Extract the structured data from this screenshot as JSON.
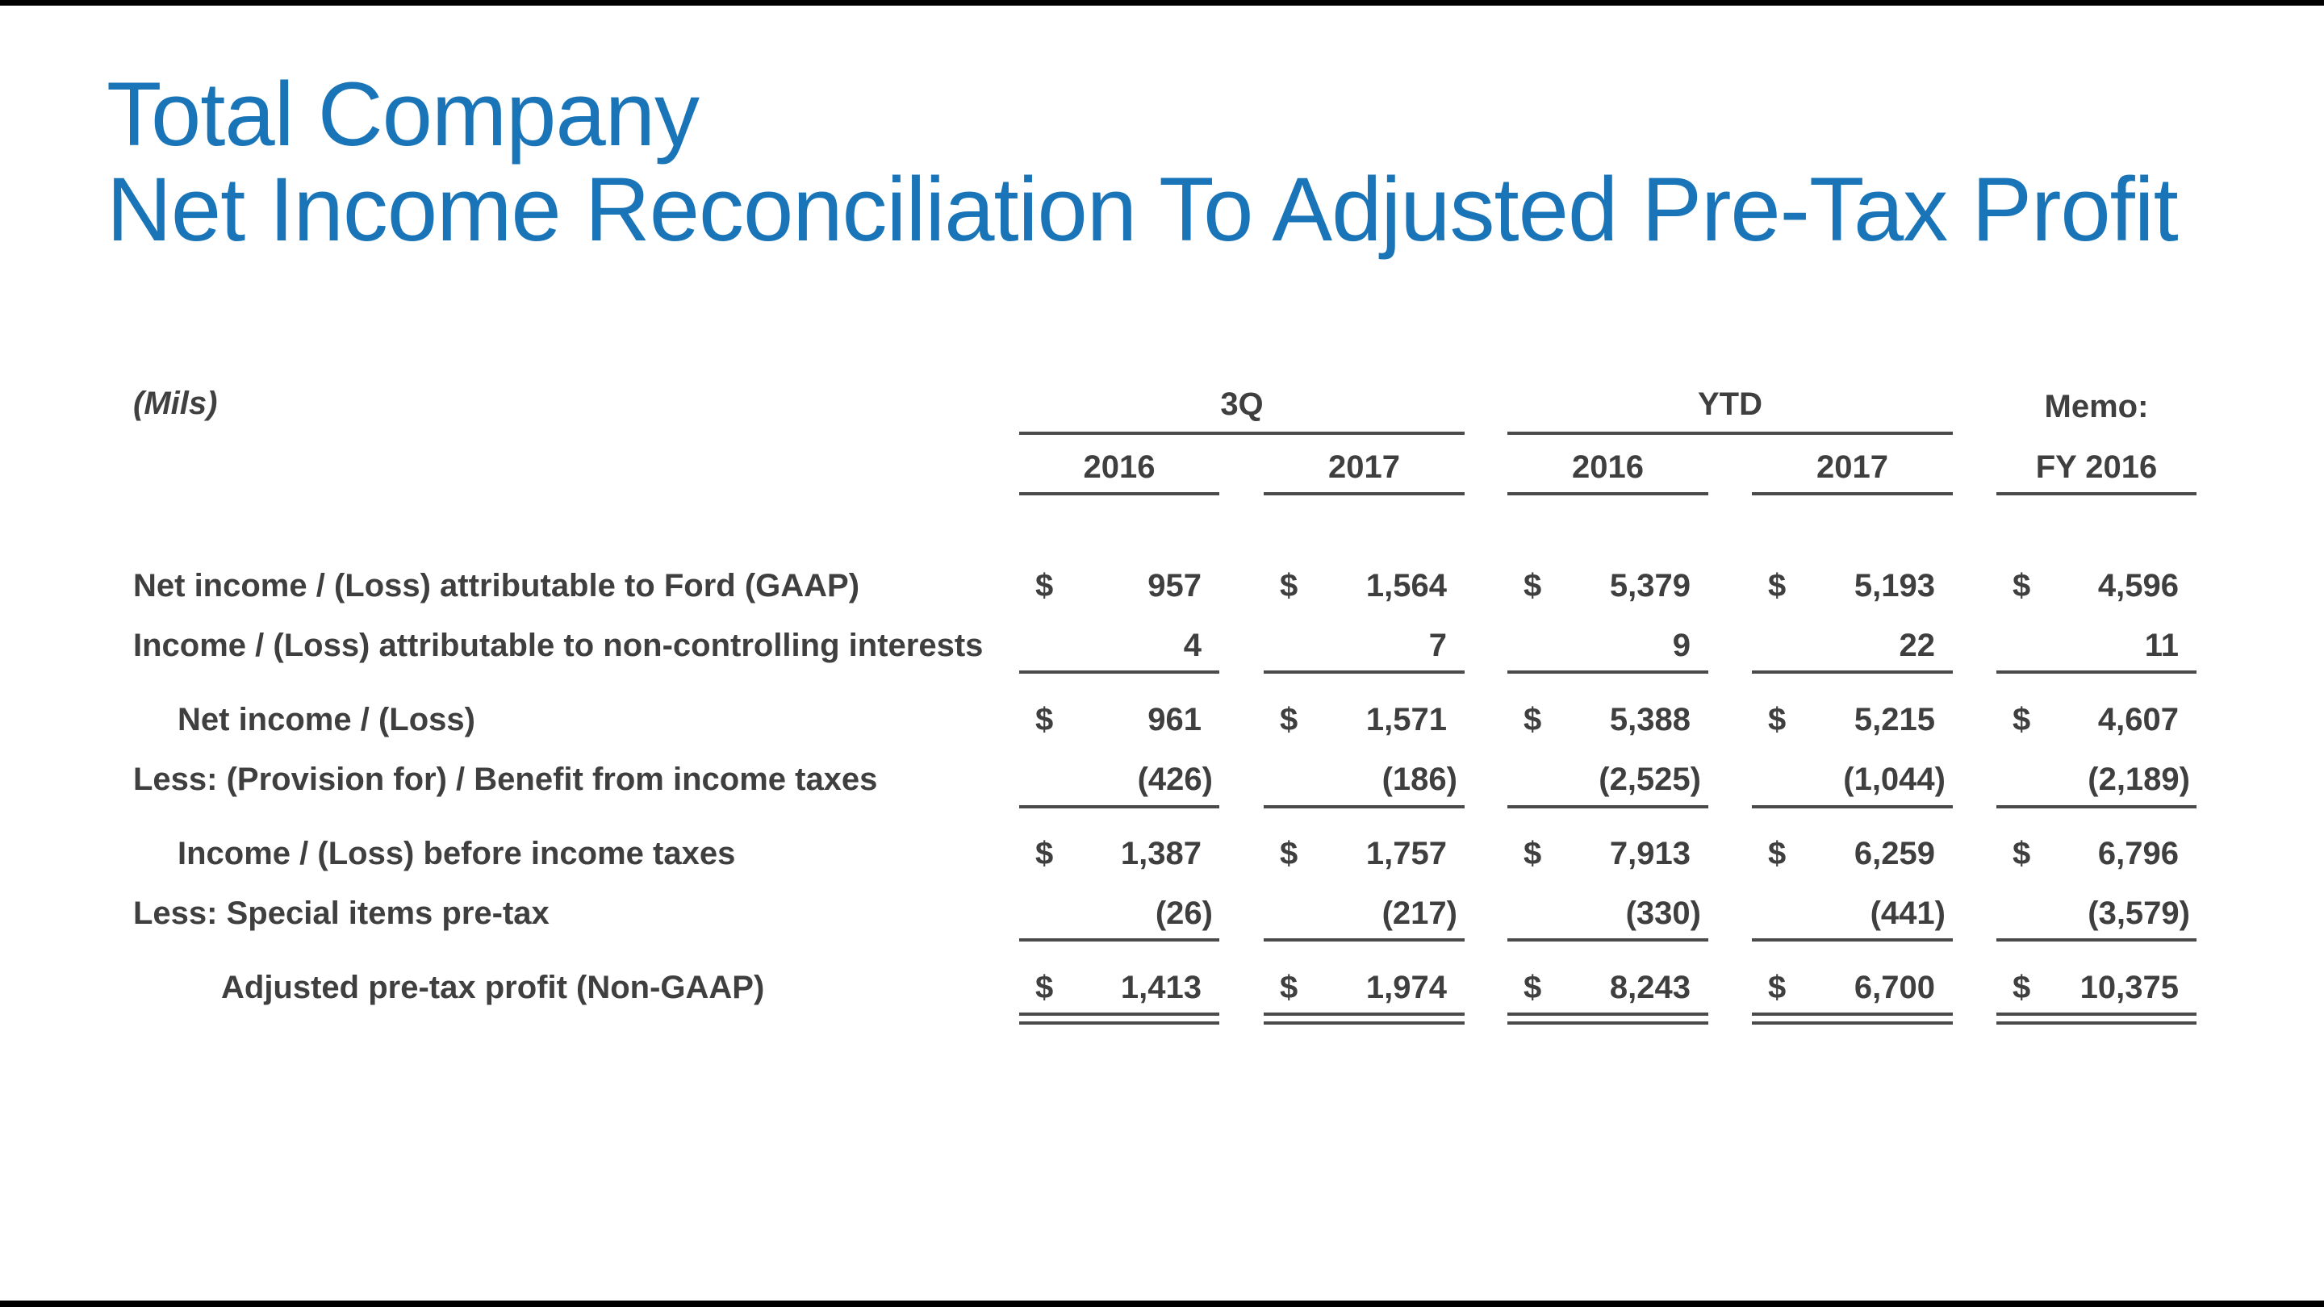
{
  "title": {
    "line1": "Total Company",
    "line2": "Net Income Reconciliation To Adjusted Pre-Tax Profit"
  },
  "units": "(Mils)",
  "groups": {
    "q3": "3Q",
    "ytd": "YTD",
    "memo": "Memo:"
  },
  "columns": [
    "2016",
    "2017",
    "2016",
    "2017",
    "FY 2016"
  ],
  "currency": "$",
  "rows": [
    {
      "label": "Net income / (Loss) attributable to Ford (GAAP)",
      "values": [
        "957",
        "1,564",
        "5,379",
        "5,193",
        "4,596"
      ]
    },
    {
      "label": "Income / (Loss) attributable to non-controlling interests",
      "values": [
        "4",
        "7",
        "9",
        "22",
        "11"
      ]
    },
    {
      "label": "Net income / (Loss)",
      "values": [
        "961",
        "1,571",
        "5,388",
        "5,215",
        "4,607"
      ]
    },
    {
      "label": "Less:  (Provision for) / Benefit from income taxes",
      "values": [
        "(426)",
        "(186)",
        "(2,525)",
        "(1,044)",
        "(2,189)"
      ]
    },
    {
      "label": "Income / (Loss) before income taxes",
      "values": [
        "1,387",
        "1,757",
        "7,913",
        "6,259",
        "6,796"
      ]
    },
    {
      "label": "Less:  Special items pre-tax",
      "values": [
        "(26)",
        "(217)",
        "(330)",
        "(441)",
        "(3,579)"
      ]
    },
    {
      "label": "Adjusted pre-tax profit (Non-GAAP)",
      "values": [
        "1,413",
        "1,974",
        "8,243",
        "6,700",
        "10,375"
      ]
    }
  ]
}
